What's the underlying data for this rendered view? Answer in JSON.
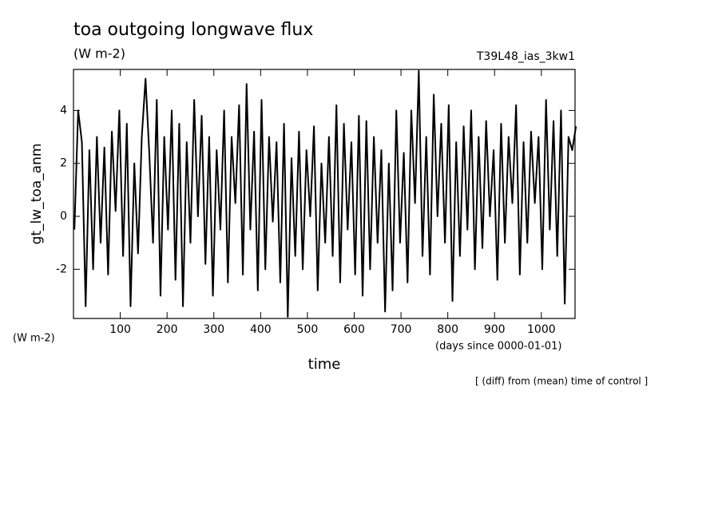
{
  "chart_data": {
    "type": "line",
    "title": "toa outgoing longwave flux",
    "subtitle": "(W m-2)",
    "run_label": "T39L48_ias_3kw1",
    "y_label": "gt_lw_toa_anm",
    "y_units": "(W m-2)",
    "x_label": "time",
    "x_units": "(days since 0000-01-01)",
    "note": "[ (diff) from (mean) time of control ]",
    "xlim": [
      0,
      1072
    ],
    "ylim": [
      -3.86,
      5.55
    ],
    "xticks": [
      100,
      200,
      300,
      400,
      500,
      600,
      700,
      800,
      900,
      1000
    ],
    "yticks": [
      -2,
      0,
      2,
      4
    ],
    "x": [
      2,
      10,
      18,
      26,
      34,
      42,
      50,
      58,
      66,
      74,
      82,
      90,
      98,
      106,
      114,
      122,
      130,
      138,
      146,
      154,
      162,
      170,
      178,
      186,
      194,
      202,
      210,
      218,
      226,
      234,
      242,
      250,
      258,
      266,
      274,
      282,
      290,
      298,
      306,
      314,
      322,
      330,
      338,
      346,
      354,
      362,
      370,
      378,
      386,
      394,
      402,
      410,
      418,
      426,
      434,
      442,
      450,
      458,
      466,
      474,
      482,
      490,
      498,
      506,
      514,
      522,
      530,
      538,
      546,
      554,
      562,
      570,
      578,
      586,
      594,
      602,
      610,
      618,
      626,
      634,
      642,
      650,
      658,
      666,
      674,
      682,
      690,
      698,
      706,
      714,
      722,
      730,
      738,
      746,
      754,
      762,
      770,
      778,
      786,
      794,
      802,
      810,
      818,
      826,
      834,
      842,
      850,
      858,
      866,
      874,
      882,
      890,
      898,
      906,
      914,
      922,
      930,
      938,
      946,
      954,
      962,
      970,
      978,
      986,
      994,
      1002,
      1010,
      1018,
      1026,
      1034,
      1042,
      1050,
      1058,
      1066,
      1074
    ],
    "series": [
      {
        "color": "#000000",
        "values": [
          -0.5,
          4.0,
          2.8,
          -3.4,
          2.5,
          -2.0,
          3.0,
          -1.0,
          2.6,
          -2.2,
          3.2,
          0.2,
          4.0,
          -1.5,
          3.5,
          -3.4,
          2.0,
          -1.4,
          3.0,
          5.2,
          2.4,
          -1.0,
          4.4,
          -3.0,
          3.0,
          -0.5,
          4.0,
          -2.4,
          3.5,
          -3.4,
          2.8,
          -1.0,
          4.4,
          0.0,
          3.8,
          -1.8,
          3.0,
          -3.0,
          2.5,
          -0.5,
          4.0,
          -2.5,
          3.0,
          0.5,
          4.2,
          -2.2,
          5.0,
          -0.5,
          3.2,
          -2.8,
          4.4,
          -2.0,
          3.0,
          -0.2,
          2.8,
          -2.5,
          3.5,
          -3.8,
          2.2,
          -1.5,
          3.2,
          -2.0,
          2.5,
          0.0,
          3.4,
          -2.8,
          2.0,
          -1.0,
          3.0,
          -1.5,
          4.2,
          -2.5,
          3.5,
          -0.5,
          2.8,
          -2.2,
          3.8,
          -3.0,
          3.6,
          -2.0,
          3.0,
          -1.0,
          2.5,
          -3.6,
          2.0,
          -2.8,
          4.0,
          -1.0,
          2.4,
          -2.5,
          4.0,
          0.5,
          5.5,
          -1.5,
          3.0,
          -2.2,
          4.6,
          0.0,
          3.5,
          -1.0,
          4.2,
          -3.2,
          2.8,
          -1.5,
          3.4,
          -0.5,
          4.0,
          -2.0,
          3.0,
          -1.2,
          3.6,
          0.0,
          2.5,
          -2.4,
          3.5,
          -1.0,
          3.0,
          0.5,
          4.2,
          -2.2,
          2.8,
          -1.0,
          3.2,
          0.5,
          3.0,
          -2.0,
          4.4,
          -0.5,
          3.6,
          -1.5,
          4.0,
          -3.3,
          3.0,
          2.5,
          3.4
        ]
      }
    ]
  }
}
